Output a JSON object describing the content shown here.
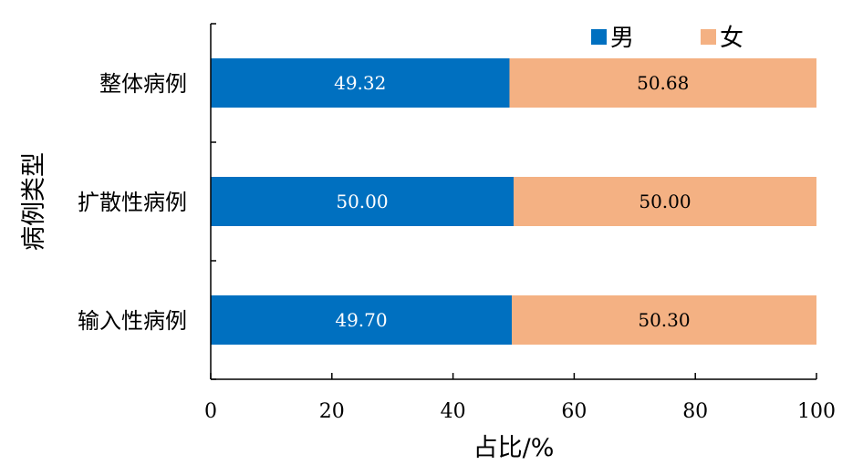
{
  "chart_data": {
    "type": "bar",
    "orientation": "horizontal",
    "stacked": true,
    "categories": [
      "整体病例",
      "扩散性病例",
      "输入性病例"
    ],
    "series": [
      {
        "name": "男",
        "values": [
          49.32,
          50.0,
          49.7
        ],
        "labels": [
          "49.32",
          "50.00",
          "49.70"
        ],
        "color": "#0070C0",
        "label_color": "#ffffff"
      },
      {
        "name": "女",
        "values": [
          50.68,
          50.0,
          50.3
        ],
        "labels": [
          "50.68",
          "50.00",
          "50.30"
        ],
        "color": "#F4B183",
        "label_color": "#000000"
      }
    ],
    "xlabel": "占比/%",
    "ylabel": "病例类型",
    "xlim": [
      0,
      100
    ],
    "xticks": [
      "0",
      "20",
      "40",
      "60",
      "80",
      "100"
    ],
    "grid": false,
    "legend_position": "top-right"
  }
}
